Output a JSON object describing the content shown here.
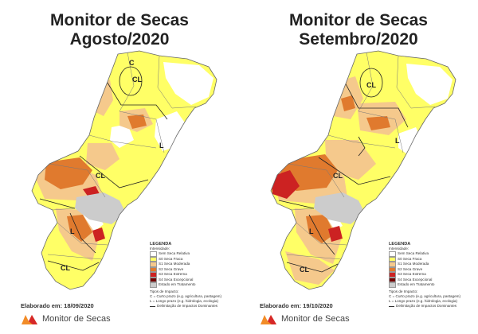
{
  "panels": [
    {
      "title_line1": "Monitor de Secas",
      "title_line2": "Agosto/2020",
      "elaborado": "Elaborado em: 18/09/2020"
    },
    {
      "title_line1": "Monitor de Secas",
      "title_line2": "Setembro/2020",
      "elaborado": "Elaborado em: 19/10/2020"
    }
  ],
  "legend": {
    "title": "LEGENDA",
    "subtitle": "Intensidade:",
    "items": [
      {
        "label": "Sem Seca Relativa",
        "color": "#ffffff"
      },
      {
        "label": "S0 Seca Fraca",
        "color": "#ffff66"
      },
      {
        "label": "S1 Seca Moderada",
        "color": "#f5c98c"
      },
      {
        "label": "S2 Seca Grave",
        "color": "#e07a2e"
      },
      {
        "label": "S3 Seca Extrema",
        "color": "#cc2222"
      },
      {
        "label": "S4 Seca Excepcional",
        "color": "#730000"
      },
      {
        "label": "Estado em Tratamento",
        "color": "#cccccc"
      }
    ],
    "impact_title": "Tipos de Impacto:",
    "impact_items": [
      "C = Curto prazo (e.g. agricultura, pastagem)",
      "L = Longo prazo (e.g. hidrologia, ecologia)",
      "Delimitação de Impactos Dominantes"
    ]
  },
  "map_labels": [
    "CL",
    "CL",
    "L",
    "CL",
    "L",
    "CL",
    "L",
    "CL",
    "C"
  ],
  "brand": {
    "name": "Monitor de Secas"
  },
  "colors": {
    "no_drought": "#ffffff",
    "s0": "#ffff66",
    "s1": "#f5c98c",
    "s2": "#e07a2e",
    "s3": "#cc2222",
    "treatment": "#cccccc",
    "logo_orange": "#f28c28",
    "logo_red": "#d62828"
  }
}
